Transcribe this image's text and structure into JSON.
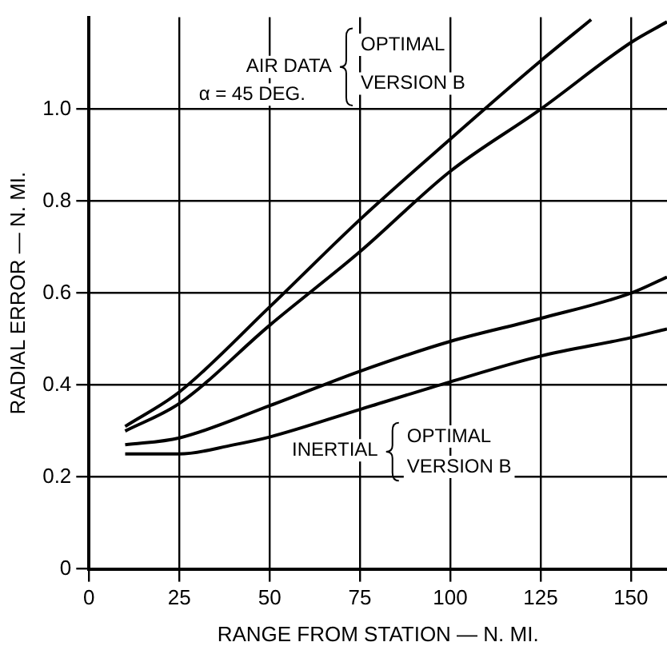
{
  "chart_data": {
    "type": "line",
    "xlabel": "RANGE FROM STATION — N. MI.",
    "ylabel": "RADIAL ERROR — N. MI.",
    "annotations": [
      "AIR DATA",
      "α = 45 DEG.",
      "OPTIMAL",
      "VERSION B",
      "INERTIAL",
      "OPTIMAL",
      "VERSION B"
    ],
    "series": [
      {
        "color": "#000000",
        "x": [
          10,
          25,
          50,
          75,
          100,
          125,
          139
        ],
        "values": [
          0.31,
          0.385,
          0.57,
          0.76,
          0.935,
          1.105,
          1.195
        ]
      },
      {
        "color": "#000000",
        "x": [
          10,
          25,
          50,
          75,
          100,
          125,
          150,
          160
        ],
        "values": [
          0.3,
          0.36,
          0.53,
          0.69,
          0.865,
          1.0,
          1.145,
          1.19
        ]
      },
      {
        "color": "#000000",
        "x": [
          10,
          25,
          50,
          75,
          100,
          125,
          150,
          160
        ],
        "values": [
          0.27,
          0.285,
          0.355,
          0.43,
          0.495,
          0.545,
          0.6,
          0.635
        ]
      },
      {
        "color": "#000000",
        "x": [
          10,
          25,
          40,
          50,
          75,
          100,
          125,
          150,
          160
        ],
        "values": [
          0.25,
          0.25,
          0.27,
          0.287,
          0.347,
          0.407,
          0.463,
          0.503,
          0.522
        ]
      }
    ],
    "xlim": [
      0,
      160
    ],
    "xticks": [
      0,
      25,
      50,
      75,
      100,
      125,
      150
    ],
    "ylim": [
      0,
      1.2
    ],
    "yticks": [
      0,
      0.2,
      0.4,
      0.6,
      0.8,
      {
        "value": 1,
        "label": "1.0"
      }
    ],
    "grid": true,
    "legend": false,
    "marker": "none",
    "line_style": "solid"
  }
}
